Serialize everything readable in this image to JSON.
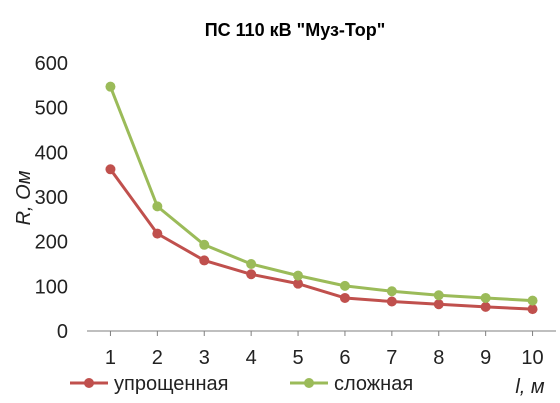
{
  "chart_data": {
    "type": "line",
    "title": "ПС 110 кВ \"Муз-Тор\"",
    "xlabel": "l, м",
    "ylabel": "R, Ом",
    "x": [
      1,
      2,
      3,
      4,
      5,
      6,
      7,
      8,
      9,
      10
    ],
    "ylim": [
      0,
      600
    ],
    "yticks": [
      0,
      100,
      200,
      300,
      400,
      500,
      600
    ],
    "grid": false,
    "legend_position": "bottom",
    "series": [
      {
        "name": "упрощенная",
        "color": "#c0504d",
        "values": [
          362,
          218,
          158,
          127,
          106,
          74,
          66,
          60,
          54,
          49
        ]
      },
      {
        "name": "сложная",
        "color": "#9bbb59",
        "values": [
          547,
          279,
          193,
          150,
          124,
          101,
          89,
          80,
          74,
          68
        ]
      }
    ]
  }
}
